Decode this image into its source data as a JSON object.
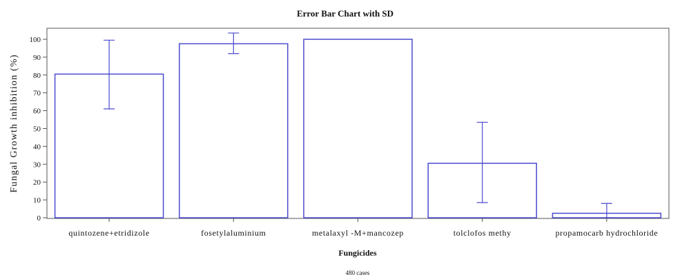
{
  "chart_data": {
    "type": "bar",
    "title": "Error Bar Chart with SD",
    "xlabel": "Fungicides",
    "ylabel": "Fungal Growth inhibition (%)",
    "caption": "480 cases",
    "ylim": [
      0,
      105
    ],
    "yticks": [
      0,
      10,
      20,
      30,
      40,
      50,
      60,
      70,
      80,
      90,
      100
    ],
    "categories": [
      "quintozene+etridizole",
      "fosetylaluminium",
      "metalaxyl -M+mancozep",
      "tolclofos methy",
      "propamocarb hydrochloride"
    ],
    "values": [
      80.5,
      97.5,
      100,
      30.5,
      2.5
    ],
    "error_low": [
      61,
      92,
      100,
      8.5,
      0
    ],
    "error_high": [
      99.5,
      103.5,
      100,
      53.5,
      8
    ],
    "grid": false,
    "bar_color": "#4a4acf",
    "error_color": "#4a4acf",
    "frame_color": "#555555"
  }
}
